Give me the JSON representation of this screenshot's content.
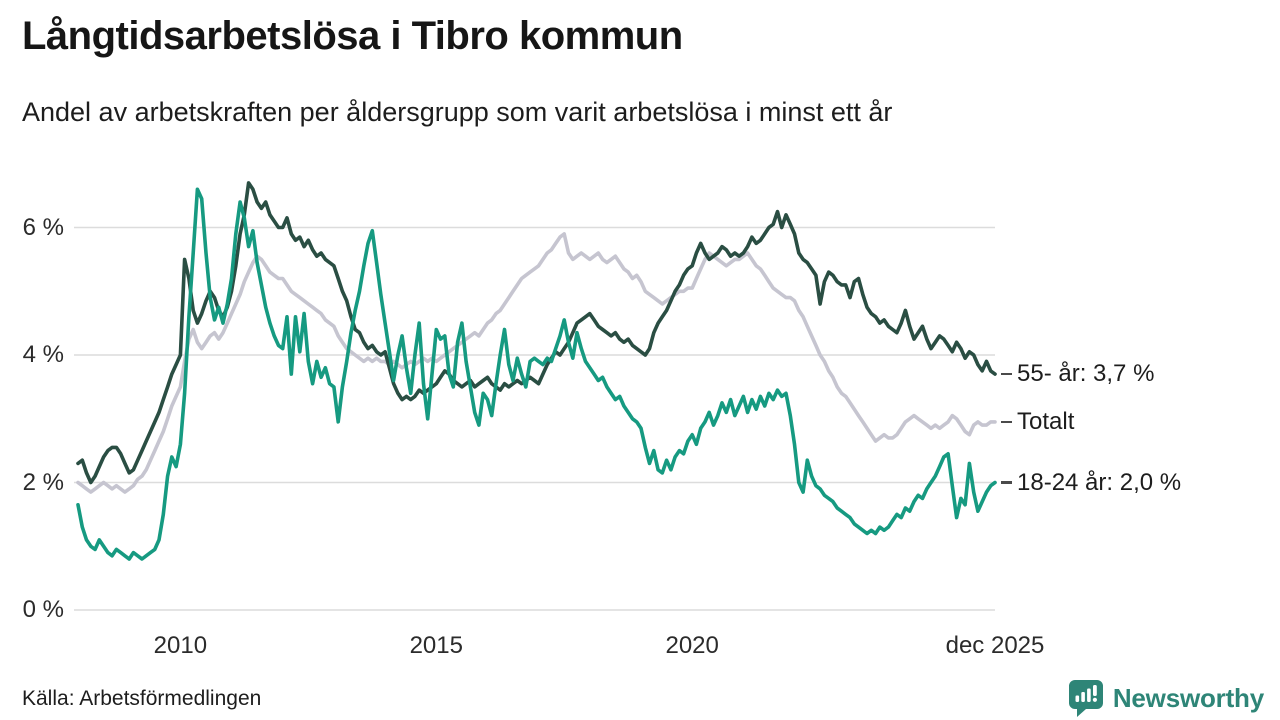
{
  "header": {
    "title": "Långtidsarbetslösa i Tibro kommun",
    "subtitle": "Andel av arbetskraften per åldersgrupp som varit arbetslösa i minst ett år"
  },
  "footer": {
    "source": "Källa: Arbetsförmedlingen",
    "brand": "Newsworthy"
  },
  "colors": {
    "series_55": "#2a4e43",
    "series_total": "#c6c5d0",
    "series_1824": "#169a81",
    "gridline": "#dcdcdc",
    "axis_text": "#2b2b2b",
    "brand_teal": "#2e8577"
  },
  "chart_data": {
    "type": "line",
    "title": "Långtidsarbetslösa i Tibro kommun",
    "subtitle": "Andel av arbetskraften per åldersgrupp som varit arbetslösa i minst ett år",
    "x_unit": "month",
    "x_start": 2008.0,
    "x_end": 2025.9167,
    "ylim": [
      0,
      7.06
    ],
    "grid": "horizontal",
    "legend_position": "right-end-labels",
    "y_ticks": [
      {
        "value": 0,
        "label": "0 %"
      },
      {
        "value": 2,
        "label": "2 %"
      },
      {
        "value": 4,
        "label": "4 %"
      },
      {
        "value": 6,
        "label": "6 %"
      }
    ],
    "x_ticks": [
      {
        "year": 2010,
        "label": "2010"
      },
      {
        "year": 2015,
        "label": "2015"
      },
      {
        "year": 2020,
        "label": "2020"
      },
      {
        "year": 2025.9167,
        "label": "dec 2025"
      }
    ],
    "series": [
      {
        "name": "55- år",
        "end_label": "55- år: 3,7 %",
        "end_value_text": "3,7 %",
        "color": "#2a4e43",
        "z": 2,
        "values": [
          2.3,
          2.35,
          2.15,
          2.0,
          2.1,
          2.25,
          2.4,
          2.5,
          2.55,
          2.55,
          2.45,
          2.3,
          2.15,
          2.2,
          2.35,
          2.5,
          2.65,
          2.8,
          2.95,
          3.1,
          3.3,
          3.5,
          3.7,
          3.85,
          4.0,
          5.5,
          5.2,
          4.7,
          4.5,
          4.65,
          4.85,
          5.0,
          4.9,
          4.7,
          4.6,
          4.75,
          5.0,
          5.4,
          5.9,
          6.2,
          6.7,
          6.6,
          6.4,
          6.3,
          6.4,
          6.2,
          6.1,
          6.0,
          6.0,
          6.15,
          5.9,
          5.8,
          5.85,
          5.7,
          5.8,
          5.65,
          5.55,
          5.6,
          5.5,
          5.45,
          5.4,
          5.2,
          5.0,
          4.85,
          4.6,
          4.4,
          4.35,
          4.2,
          4.1,
          4.15,
          4.05,
          4.0,
          4.05,
          3.8,
          3.55,
          3.4,
          3.3,
          3.35,
          3.3,
          3.35,
          3.45,
          3.4,
          3.45,
          3.5,
          3.55,
          3.65,
          3.75,
          3.7,
          3.6,
          3.55,
          3.5,
          3.55,
          3.6,
          3.5,
          3.55,
          3.6,
          3.65,
          3.55,
          3.5,
          3.45,
          3.55,
          3.5,
          3.55,
          3.6,
          3.55,
          3.6,
          3.65,
          3.6,
          3.55,
          3.7,
          3.85,
          3.95,
          4.05,
          4.0,
          4.1,
          4.2,
          4.35,
          4.5,
          4.55,
          4.6,
          4.65,
          4.55,
          4.45,
          4.4,
          4.35,
          4.3,
          4.35,
          4.25,
          4.2,
          4.25,
          4.15,
          4.1,
          4.05,
          4.0,
          4.1,
          4.35,
          4.5,
          4.6,
          4.7,
          4.85,
          5.0,
          5.1,
          5.25,
          5.35,
          5.4,
          5.6,
          5.75,
          5.6,
          5.5,
          5.55,
          5.6,
          5.7,
          5.65,
          5.55,
          5.6,
          5.55,
          5.6,
          5.7,
          5.85,
          5.75,
          5.8,
          5.9,
          6.0,
          6.05,
          6.25,
          6.0,
          6.2,
          6.05,
          5.9,
          5.6,
          5.5,
          5.45,
          5.35,
          5.25,
          4.8,
          5.15,
          5.3,
          5.25,
          5.15,
          5.1,
          5.1,
          4.9,
          5.15,
          5.2,
          4.95,
          4.75,
          4.65,
          4.6,
          4.5,
          4.55,
          4.45,
          4.4,
          4.35,
          4.5,
          4.7,
          4.45,
          4.25,
          4.35,
          4.45,
          4.25,
          4.1,
          4.2,
          4.3,
          4.25,
          4.15,
          4.05,
          4.2,
          4.1,
          3.95,
          4.05,
          4.0,
          3.85,
          3.75,
          3.9,
          3.75,
          3.7
        ]
      },
      {
        "name": "Totalt",
        "end_label": "Totalt",
        "end_value_text": "",
        "color": "#c6c5d0",
        "z": 1,
        "values": [
          2.0,
          1.95,
          1.9,
          1.85,
          1.9,
          1.95,
          2.0,
          1.95,
          1.9,
          1.95,
          1.9,
          1.85,
          1.9,
          1.95,
          2.05,
          2.1,
          2.2,
          2.35,
          2.5,
          2.65,
          2.8,
          3.0,
          3.2,
          3.35,
          3.5,
          3.9,
          4.25,
          4.4,
          4.2,
          4.1,
          4.2,
          4.3,
          4.35,
          4.25,
          4.35,
          4.5,
          4.65,
          4.8,
          4.95,
          5.15,
          5.3,
          5.45,
          5.55,
          5.5,
          5.4,
          5.3,
          5.25,
          5.2,
          5.2,
          5.1,
          5.0,
          4.95,
          4.9,
          4.85,
          4.8,
          4.75,
          4.7,
          4.65,
          4.55,
          4.5,
          4.45,
          4.3,
          4.2,
          4.1,
          4.05,
          4.0,
          3.95,
          3.9,
          3.95,
          3.9,
          3.95,
          3.9,
          3.9,
          3.85,
          3.9,
          3.85,
          3.8,
          3.85,
          3.9,
          3.85,
          3.9,
          3.95,
          3.9,
          3.95,
          3.9,
          3.95,
          4.0,
          4.05,
          4.1,
          4.15,
          4.2,
          4.25,
          4.3,
          4.35,
          4.3,
          4.4,
          4.5,
          4.55,
          4.65,
          4.7,
          4.8,
          4.9,
          5.0,
          5.1,
          5.2,
          5.25,
          5.3,
          5.35,
          5.4,
          5.5,
          5.6,
          5.65,
          5.75,
          5.85,
          5.9,
          5.6,
          5.5,
          5.55,
          5.6,
          5.55,
          5.5,
          5.55,
          5.6,
          5.5,
          5.45,
          5.5,
          5.55,
          5.45,
          5.35,
          5.3,
          5.2,
          5.25,
          5.15,
          5.0,
          4.95,
          4.9,
          4.85,
          4.8,
          4.85,
          4.9,
          4.95,
          5.0,
          5.0,
          5.05,
          5.05,
          5.2,
          5.35,
          5.5,
          5.6,
          5.55,
          5.5,
          5.45,
          5.4,
          5.45,
          5.5,
          5.5,
          5.55,
          5.6,
          5.5,
          5.4,
          5.35,
          5.25,
          5.15,
          5.05,
          5.0,
          4.95,
          4.9,
          4.9,
          4.85,
          4.7,
          4.6,
          4.45,
          4.3,
          4.15,
          4.0,
          3.9,
          3.75,
          3.65,
          3.5,
          3.4,
          3.35,
          3.25,
          3.15,
          3.05,
          2.95,
          2.85,
          2.75,
          2.65,
          2.7,
          2.75,
          2.7,
          2.7,
          2.75,
          2.85,
          2.95,
          3.0,
          3.05,
          3.0,
          2.95,
          2.9,
          2.85,
          2.9,
          2.85,
          2.9,
          2.95,
          3.05,
          3.0,
          2.9,
          2.8,
          2.75,
          2.9,
          2.95,
          2.9,
          2.9,
          2.95,
          2.95
        ]
      },
      {
        "name": "18-24 år",
        "end_label": "18-24 år: 2,0 %",
        "end_value_text": "2,0 %",
        "color": "#169a81",
        "z": 3,
        "values": [
          1.65,
          1.3,
          1.1,
          1.0,
          0.95,
          1.1,
          1.0,
          0.9,
          0.85,
          0.95,
          0.9,
          0.85,
          0.8,
          0.9,
          0.85,
          0.8,
          0.85,
          0.9,
          0.95,
          1.1,
          1.5,
          2.1,
          2.4,
          2.25,
          2.6,
          3.4,
          4.6,
          5.6,
          6.6,
          6.45,
          5.6,
          4.9,
          4.55,
          4.75,
          4.5,
          4.8,
          5.2,
          5.9,
          6.4,
          6.15,
          5.7,
          5.95,
          5.45,
          5.1,
          4.75,
          4.5,
          4.3,
          4.15,
          4.1,
          4.6,
          3.7,
          4.6,
          4.05,
          4.65,
          3.9,
          3.55,
          3.9,
          3.65,
          3.8,
          3.55,
          3.5,
          2.95,
          3.5,
          3.9,
          4.35,
          4.7,
          5.0,
          5.4,
          5.75,
          5.95,
          5.45,
          4.95,
          4.5,
          4.05,
          3.6,
          4.0,
          4.3,
          3.8,
          3.4,
          4.0,
          4.5,
          3.55,
          3.0,
          3.7,
          4.4,
          4.25,
          4.3,
          3.7,
          3.5,
          4.2,
          4.5,
          3.9,
          3.5,
          3.1,
          2.9,
          3.4,
          3.3,
          3.05,
          3.55,
          4.0,
          4.4,
          3.85,
          3.6,
          3.95,
          3.7,
          3.5,
          3.9,
          3.95,
          3.9,
          3.85,
          3.95,
          3.9,
          4.1,
          4.3,
          4.55,
          4.2,
          3.95,
          4.35,
          4.1,
          3.9,
          3.8,
          3.7,
          3.6,
          3.65,
          3.5,
          3.4,
          3.3,
          3.35,
          3.2,
          3.1,
          3.0,
          2.95,
          2.85,
          2.55,
          2.3,
          2.5,
          2.2,
          2.15,
          2.35,
          2.2,
          2.4,
          2.5,
          2.45,
          2.65,
          2.75,
          2.6,
          2.85,
          2.95,
          3.1,
          2.9,
          3.05,
          3.25,
          3.1,
          3.3,
          3.05,
          3.2,
          3.35,
          3.1,
          3.3,
          3.15,
          3.35,
          3.2,
          3.4,
          3.3,
          3.45,
          3.35,
          3.4,
          3.05,
          2.6,
          2.0,
          1.85,
          2.35,
          2.1,
          1.95,
          1.9,
          1.8,
          1.75,
          1.7,
          1.6,
          1.55,
          1.5,
          1.45,
          1.35,
          1.3,
          1.25,
          1.2,
          1.25,
          1.2,
          1.3,
          1.25,
          1.3,
          1.4,
          1.5,
          1.45,
          1.6,
          1.55,
          1.7,
          1.8,
          1.75,
          1.9,
          2.0,
          2.1,
          2.25,
          2.4,
          2.45,
          1.95,
          1.45,
          1.75,
          1.65,
          2.3,
          1.85,
          1.55,
          1.7,
          1.85,
          1.95,
          2.0
        ]
      }
    ]
  }
}
